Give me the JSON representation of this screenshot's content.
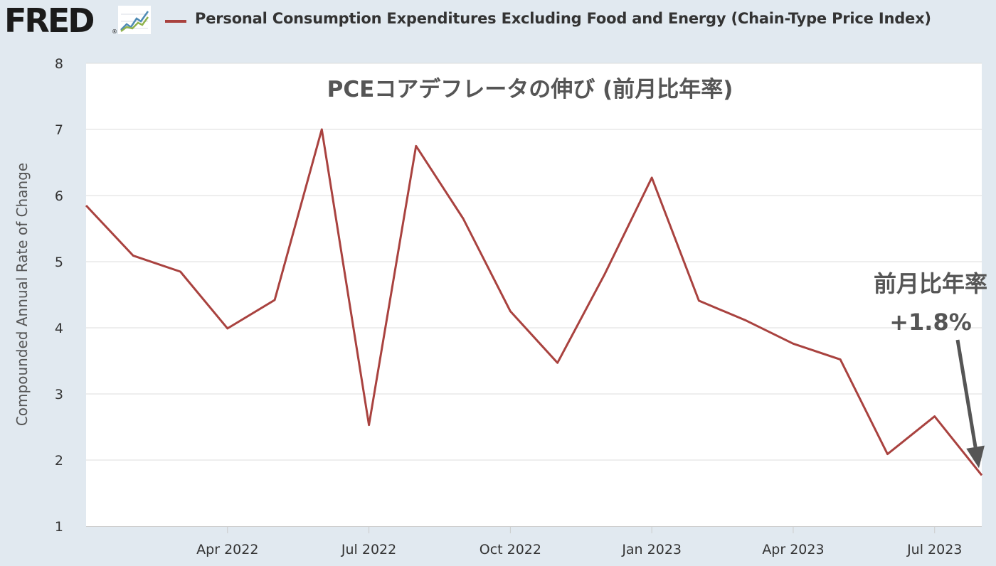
{
  "header": {
    "logo_text": "FRED",
    "logo_reg": "®",
    "legend_label": "Personal Consumption Expenditures Excluding Food and Energy (Chain-Type Price Index)"
  },
  "colors": {
    "series": "#a9423f",
    "page_bg": "#e1e9f0",
    "plot_bg": "#ffffff",
    "grid": "#dddddd",
    "annotation": "#555555"
  },
  "chart_data": {
    "type": "line",
    "title": "PCEコアデフレータの伸び (前月比年率)",
    "ylabel": "Compounded Annual Rate of Change",
    "xlabel": "",
    "ylim": [
      1,
      8
    ],
    "yticks": [
      1,
      2,
      3,
      4,
      5,
      6,
      7,
      8
    ],
    "xlim": [
      "2022-01",
      "2023-08"
    ],
    "xticks": [
      {
        "date": "2022-04",
        "label": "Apr 2022"
      },
      {
        "date": "2022-07",
        "label": "Jul 2022"
      },
      {
        "date": "2022-10",
        "label": "Oct 2022"
      },
      {
        "date": "2023-01",
        "label": "Jan 2023"
      },
      {
        "date": "2023-04",
        "label": "Apr 2023"
      },
      {
        "date": "2023-07",
        "label": "Jul 2023"
      }
    ],
    "grid": true,
    "series": [
      {
        "name": "Personal Consumption Expenditures Excluding Food and Energy (Chain-Type Price Index)",
        "x": [
          "2022-01",
          "2022-02",
          "2022-03",
          "2022-04",
          "2022-05",
          "2022-06",
          "2022-07",
          "2022-08",
          "2022-09",
          "2022-10",
          "2022-11",
          "2022-12",
          "2023-01",
          "2023-02",
          "2023-03",
          "2023-04",
          "2023-05",
          "2023-06",
          "2023-07",
          "2023-08"
        ],
        "values": [
          5.85,
          5.09,
          4.85,
          3.99,
          4.42,
          7.0,
          2.53,
          6.75,
          5.65,
          4.25,
          3.47,
          4.81,
          6.27,
          4.41,
          4.11,
          3.76,
          3.52,
          2.09,
          2.66,
          1.77
        ]
      }
    ],
    "annotation": {
      "line1": "前月比年率",
      "line2": "+1.8%"
    }
  }
}
